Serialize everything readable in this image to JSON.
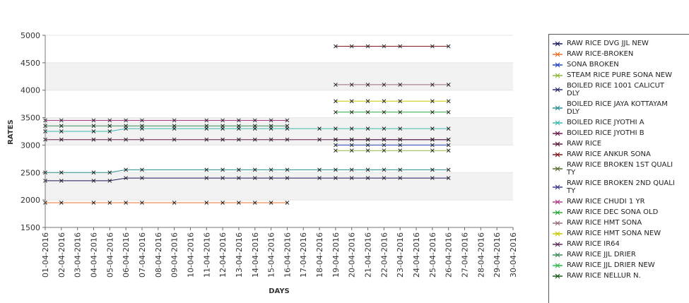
{
  "chart_data": {
    "type": "line",
    "xlabel": "DAYS",
    "ylabel": "RATES",
    "ylim": [
      1500,
      5000
    ],
    "yticks": [
      1500,
      2000,
      2500,
      3000,
      3500,
      4000,
      4500,
      5000
    ],
    "grid": "alternating horizontal bands",
    "legend_position": "right",
    "categories": [
      "01-04-2016",
      "02-04-2016",
      "03-04-2016",
      "04-04-2016",
      "05-04-2016",
      "06-04-2016",
      "07-04-2016",
      "08-04-2016",
      "09-04-2016",
      "10-04-2016",
      "11-04-2016",
      "12-04-2016",
      "13-04-2016",
      "14-04-2016",
      "15-04-2016",
      "16-04-2016",
      "17-04-2016",
      "18-04-2016",
      "19-04-2016",
      "20-04-2016",
      "21-04-2016",
      "22-04-2016",
      "23-04-2016",
      "24-04-2016",
      "25-04-2016",
      "26-04-2016",
      "27-04-2016",
      "28-04-2016",
      "29-04-2016",
      "30-04-2016"
    ],
    "series": [
      {
        "name": "RAW RICE DVG JJL NEW",
        "color": "#1a1a5e",
        "values": [
          2350,
          2350,
          null,
          2350,
          2350,
          2400,
          2400,
          null,
          null,
          null,
          2400,
          2400,
          2400,
          2400,
          2400,
          2400,
          null,
          2400,
          2400,
          2400,
          2400,
          2400,
          2400,
          null,
          2400,
          2400,
          null,
          null,
          null,
          null
        ]
      },
      {
        "name": "RAW RICE-BROKEN",
        "color": "#e8702a",
        "values": [
          1950,
          1950,
          null,
          1950,
          1950,
          1950,
          1950,
          null,
          1950,
          null,
          1950,
          1950,
          1950,
          1950,
          1950,
          1950,
          null,
          null,
          null,
          null,
          null,
          null,
          null,
          null,
          null,
          null,
          null,
          null,
          null,
          null
        ]
      },
      {
        "name": "SONA BROKEN",
        "color": "#2446b8",
        "values": [
          null,
          null,
          null,
          null,
          null,
          null,
          null,
          null,
          null,
          null,
          null,
          null,
          null,
          null,
          null,
          null,
          null,
          null,
          3000,
          3000,
          3000,
          3000,
          3000,
          null,
          3000,
          3000,
          null,
          null,
          null,
          null
        ]
      },
      {
        "name": "STEAM RICE PURE SONA NEW",
        "color": "#8fb83a",
        "values": [
          null,
          null,
          null,
          null,
          null,
          null,
          null,
          null,
          null,
          null,
          null,
          null,
          null,
          null,
          null,
          null,
          null,
          null,
          2900,
          2900,
          2900,
          2900,
          2900,
          null,
          2900,
          2900,
          null,
          null,
          null,
          null
        ]
      },
      {
        "name": "BOILED RICE 1001 CALICUT\nDLY",
        "color": "#2a2a6e",
        "values": [
          null,
          null,
          null,
          null,
          null,
          null,
          null,
          null,
          null,
          null,
          null,
          null,
          null,
          null,
          null,
          null,
          null,
          null,
          3100,
          3100,
          3100,
          3100,
          3100,
          null,
          3100,
          3100,
          null,
          null,
          null,
          null
        ]
      },
      {
        "name": "BOILED RICE JAYA KOTTAYAM\n DLY",
        "color": "#2a8f8f",
        "values": [
          2500,
          2500,
          null,
          2500,
          2500,
          2550,
          2550,
          null,
          null,
          null,
          2550,
          2550,
          2550,
          2550,
          2550,
          2550,
          null,
          2550,
          2550,
          2550,
          2550,
          2550,
          2550,
          null,
          2550,
          2550,
          null,
          null,
          null,
          null
        ]
      },
      {
        "name": "BOILED RICE JYOTHI A",
        "color": "#3bb8b0",
        "values": [
          3250,
          3250,
          null,
          3250,
          3250,
          3300,
          3300,
          null,
          3300,
          null,
          3300,
          3300,
          3300,
          3300,
          3300,
          3300,
          null,
          3300,
          3300,
          3300,
          3300,
          3300,
          3300,
          null,
          3300,
          3300,
          null,
          null,
          null,
          null
        ]
      },
      {
        "name": "BOILED RICE JYOTHI B",
        "color": "#6a1a4a",
        "values": [
          3100,
          3100,
          null,
          3100,
          3100,
          3100,
          3100,
          null,
          3100,
          null,
          3100,
          3100,
          3100,
          3100,
          3100,
          3100,
          null,
          3100,
          3100,
          3100,
          3100,
          3100,
          3100,
          null,
          3100,
          3100,
          null,
          null,
          null,
          null
        ]
      },
      {
        "name": "RAW RICE",
        "color": "#5a1a3a",
        "values": [
          null,
          null,
          null,
          null,
          null,
          null,
          null,
          null,
          null,
          null,
          null,
          null,
          null,
          null,
          null,
          null,
          null,
          null,
          null,
          null,
          null,
          null,
          null,
          null,
          null,
          null,
          null,
          null,
          null,
          null
        ]
      },
      {
        "name": "RAW RICE ANKUR SONA",
        "color": "#7a1a1a",
        "values": [
          null,
          null,
          null,
          null,
          null,
          null,
          null,
          null,
          null,
          null,
          null,
          null,
          null,
          null,
          null,
          null,
          null,
          null,
          4800,
          4800,
          4800,
          4800,
          4800,
          null,
          4800,
          4800,
          null,
          null,
          null,
          null
        ]
      },
      {
        "name": "RAW RICE BROKEN 1ST QUALI\nTY",
        "color": "#556b2f",
        "values": [
          null,
          null,
          null,
          null,
          null,
          null,
          null,
          null,
          null,
          null,
          null,
          null,
          null,
          null,
          null,
          null,
          null,
          null,
          null,
          null,
          null,
          null,
          null,
          null,
          null,
          null,
          null,
          null,
          null,
          null
        ]
      },
      {
        "name": "RAW RICE BROKEN 2ND QUALI\nTY",
        "color": "#3a3a8a",
        "values": [
          null,
          null,
          null,
          null,
          null,
          null,
          null,
          null,
          null,
          null,
          null,
          null,
          null,
          null,
          null,
          null,
          null,
          null,
          null,
          null,
          null,
          null,
          null,
          null,
          null,
          null,
          null,
          null,
          null,
          null
        ]
      },
      {
        "name": "RAW RICE CHUDI 1 YR",
        "color": "#b03a8a",
        "values": [
          3450,
          3450,
          null,
          3450,
          3450,
          3450,
          3450,
          null,
          3450,
          null,
          3450,
          3450,
          3450,
          3450,
          3450,
          3450,
          null,
          null,
          null,
          null,
          null,
          null,
          null,
          null,
          null,
          null,
          null,
          null,
          null,
          null
        ]
      },
      {
        "name": "RAW RICE DEC SONA OLD",
        "color": "#2aa83a",
        "values": [
          null,
          null,
          null,
          null,
          null,
          null,
          null,
          null,
          null,
          null,
          null,
          null,
          null,
          null,
          null,
          null,
          null,
          null,
          3600,
          3600,
          3600,
          3600,
          3600,
          null,
          3600,
          3600,
          null,
          null,
          null,
          null
        ]
      },
      {
        "name": "RAW RICE HMT SONA",
        "color": "#9a6a7a",
        "values": [
          null,
          null,
          null,
          null,
          null,
          null,
          null,
          null,
          null,
          null,
          null,
          null,
          null,
          null,
          null,
          null,
          null,
          null,
          4100,
          4100,
          4100,
          4100,
          4100,
          null,
          4100,
          4100,
          null,
          null,
          null,
          null
        ]
      },
      {
        "name": "RAW RICE HMT SONA NEW",
        "color": "#c8c800",
        "values": [
          null,
          null,
          null,
          null,
          null,
          null,
          null,
          null,
          null,
          null,
          null,
          null,
          null,
          null,
          null,
          null,
          null,
          null,
          3800,
          3800,
          3800,
          3800,
          3800,
          null,
          3800,
          3800,
          null,
          null,
          null,
          null
        ]
      },
      {
        "name": "RAW RICE IR64",
        "color": "#5a2a5a",
        "values": [
          null,
          null,
          null,
          null,
          null,
          null,
          null,
          null,
          null,
          null,
          null,
          null,
          null,
          null,
          null,
          null,
          null,
          null,
          null,
          null,
          null,
          null,
          null,
          null,
          null,
          null,
          null,
          null,
          null,
          null
        ]
      },
      {
        "name": "RAW RICE JJL DRIER",
        "color": "#3a8a5a",
        "values": [
          3350,
          3350,
          null,
          3350,
          3350,
          3350,
          3350,
          null,
          3350,
          null,
          3350,
          3350,
          3350,
          3350,
          3350,
          3350,
          null,
          null,
          null,
          null,
          null,
          null,
          null,
          null,
          null,
          null,
          null,
          null,
          null,
          null
        ]
      },
      {
        "name": "RAW RICE JJL DRIER NEW",
        "color": "#2ab84a",
        "values": [
          null,
          null,
          null,
          null,
          null,
          null,
          null,
          null,
          null,
          null,
          null,
          null,
          null,
          null,
          null,
          null,
          null,
          null,
          null,
          null,
          null,
          null,
          null,
          null,
          null,
          null,
          null,
          null,
          null,
          null
        ]
      },
      {
        "name": "RAW RICE NELLUR N.",
        "color": "#1a5a1a",
        "values": [
          null,
          null,
          null,
          null,
          null,
          null,
          null,
          null,
          null,
          null,
          null,
          null,
          null,
          null,
          null,
          null,
          null,
          null,
          null,
          null,
          null,
          null,
          null,
          null,
          null,
          null,
          null,
          null,
          null,
          null
        ]
      }
    ]
  }
}
